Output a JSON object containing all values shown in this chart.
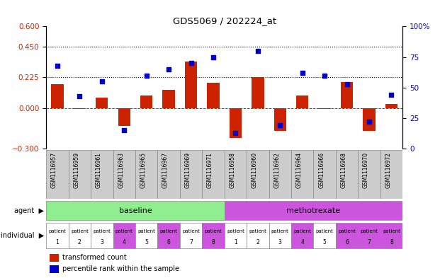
{
  "title": "GDS5069 / 202224_at",
  "samples": [
    "GSM1116957",
    "GSM1116959",
    "GSM1116961",
    "GSM1116963",
    "GSM1116965",
    "GSM1116967",
    "GSM1116969",
    "GSM1116971",
    "GSM1116958",
    "GSM1116960",
    "GSM1116962",
    "GSM1116964",
    "GSM1116966",
    "GSM1116968",
    "GSM1116970",
    "GSM1116972"
  ],
  "bar_values": [
    0.175,
    -0.005,
    0.075,
    -0.13,
    0.09,
    0.135,
    0.34,
    0.185,
    -0.22,
    0.225,
    -0.17,
    0.09,
    -0.005,
    0.19,
    -0.17,
    0.03
  ],
  "scatter_pct": [
    68,
    43,
    55,
    15,
    60,
    65,
    70,
    75,
    13,
    80,
    19,
    62,
    60,
    53,
    22,
    44
  ],
  "ylim_left": [
    -0.3,
    0.6
  ],
  "ylim_right": [
    0,
    100
  ],
  "left_ticks": [
    -0.3,
    0.0,
    0.225,
    0.45,
    0.6
  ],
  "right_ticks": [
    0,
    25,
    50,
    75,
    100
  ],
  "right_tick_labels": [
    "0",
    "25",
    "50",
    "75",
    "100%"
  ],
  "hlines": [
    0.225,
    0.45
  ],
  "agent_groups": [
    {
      "label": "baseline",
      "start": 0,
      "end": 7,
      "color": "#90ee90"
    },
    {
      "label": "methotrexate",
      "start": 8,
      "end": 15,
      "color": "#cc55dd"
    }
  ],
  "individual_labels_top": [
    "patient",
    "patient",
    "patient",
    "patient",
    "patient",
    "patient",
    "patient",
    "patient",
    "patient",
    "patient",
    "patient",
    "patient",
    "patient",
    "patient",
    "patient",
    "patient"
  ],
  "individual_labels_bot": [
    "1",
    "2",
    "3",
    "4",
    "5",
    "6",
    "7",
    "8",
    "1",
    "2",
    "3",
    "4",
    "5",
    "6",
    "7",
    "8"
  ],
  "individual_colors": [
    "#ffffff",
    "#ffffff",
    "#ffffff",
    "#cc55dd",
    "#ffffff",
    "#cc55dd",
    "#ffffff",
    "#cc55dd",
    "#ffffff",
    "#ffffff",
    "#ffffff",
    "#cc55dd",
    "#ffffff",
    "#cc55dd",
    "#cc55dd",
    "#cc55dd"
  ],
  "bar_color": "#cc2200",
  "scatter_color": "#0000cc",
  "legend_bar_label": "transformed count",
  "legend_scatter_label": "percentile rank within the sample",
  "zero_line_color": "#cc2200",
  "bg_color": "#ffffff",
  "gsm_cell_color": "#cccccc"
}
